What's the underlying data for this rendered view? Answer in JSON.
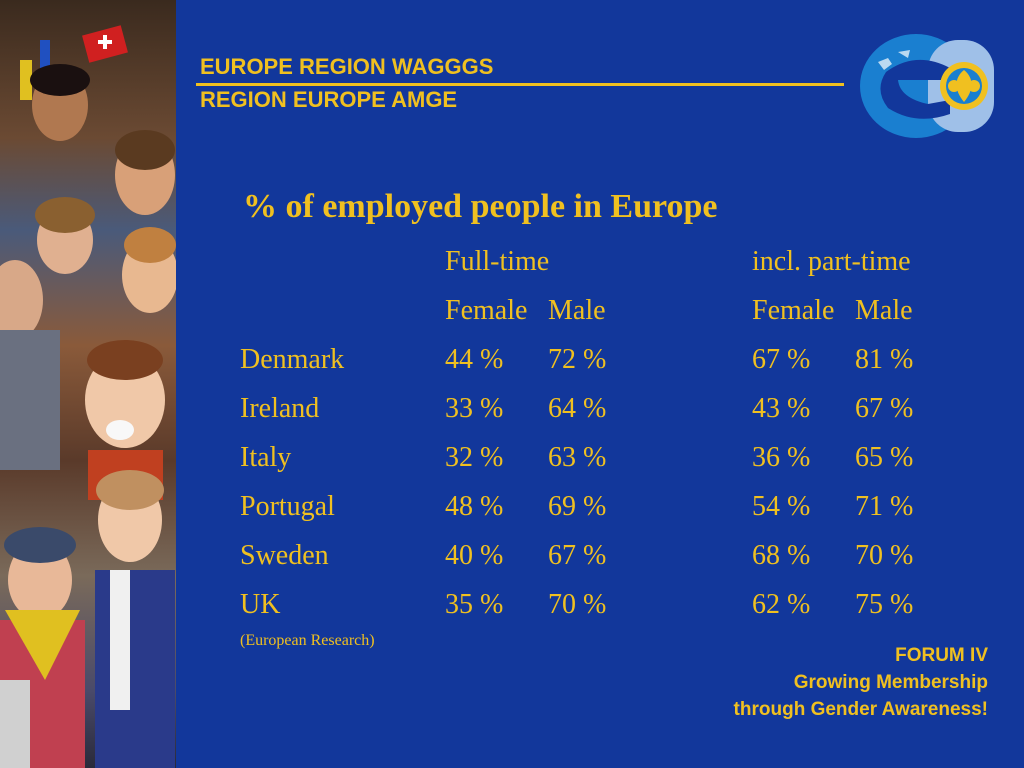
{
  "header": {
    "line1": "EUROPE REGION WAGGGS",
    "line2": "REGION EUROPE AMGE"
  },
  "title": "% of employed people in Europe",
  "groups": {
    "fulltime": "Full-time",
    "parttime": "incl. part-time"
  },
  "subheaders": {
    "female": "Female",
    "male": "Male"
  },
  "rows": [
    {
      "country": "Denmark",
      "ft_female": "44 %",
      "ft_male": "72 %",
      "pt_female": "67 %",
      "pt_male": "81 %"
    },
    {
      "country": "Ireland",
      "ft_female": "33 %",
      "ft_male": "64 %",
      "pt_female": "43 %",
      "pt_male": "67 %"
    },
    {
      "country": "Italy",
      "ft_female": "32 %",
      "ft_male": "63 %",
      "pt_female": "36 %",
      "pt_male": "65 %"
    },
    {
      "country": "Portugal",
      "ft_female": "48 %",
      "ft_male": "69 %",
      "pt_female": "54 %",
      "pt_male": "71 %"
    },
    {
      "country": "Sweden",
      "ft_female": "40 %",
      "ft_male": "67 %",
      "pt_female": "68 %",
      "pt_male": "70 %"
    },
    {
      "country": "UK",
      "ft_female": "35 %",
      "ft_male": "70 %",
      "pt_female": "62 %",
      "pt_male": "75 %"
    }
  ],
  "source": "(European Research)",
  "footer": {
    "line1": "FORUM IV",
    "line2": "Growing Membership",
    "line3": "through Gender Awareness!"
  },
  "colors": {
    "background": "#12379b",
    "text": "#f0c020",
    "logo_blue": "#1a7fd0"
  },
  "icons": {
    "logo": "wagggs-europe-logo-icon",
    "photo": "scouts-collage-photo"
  }
}
